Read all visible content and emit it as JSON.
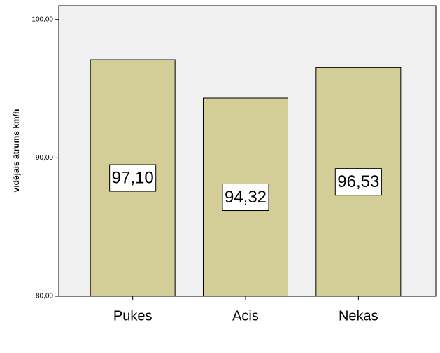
{
  "chart_data": {
    "type": "bar",
    "y_label": "vidējais ātrums km/h",
    "categories": [
      "Pukes",
      "Acis",
      "Nekas"
    ],
    "values": [
      97.1,
      94.32,
      96.53
    ],
    "value_labels": [
      "97,10",
      "94,32",
      "96,53"
    ],
    "color": "#d3ce97",
    "ylim": [
      80,
      101
    ],
    "yticks": [
      {
        "value": 80,
        "label": "80,00"
      },
      {
        "value": 90,
        "label": "90,00"
      },
      {
        "value": 100,
        "label": "100,00"
      }
    ]
  }
}
